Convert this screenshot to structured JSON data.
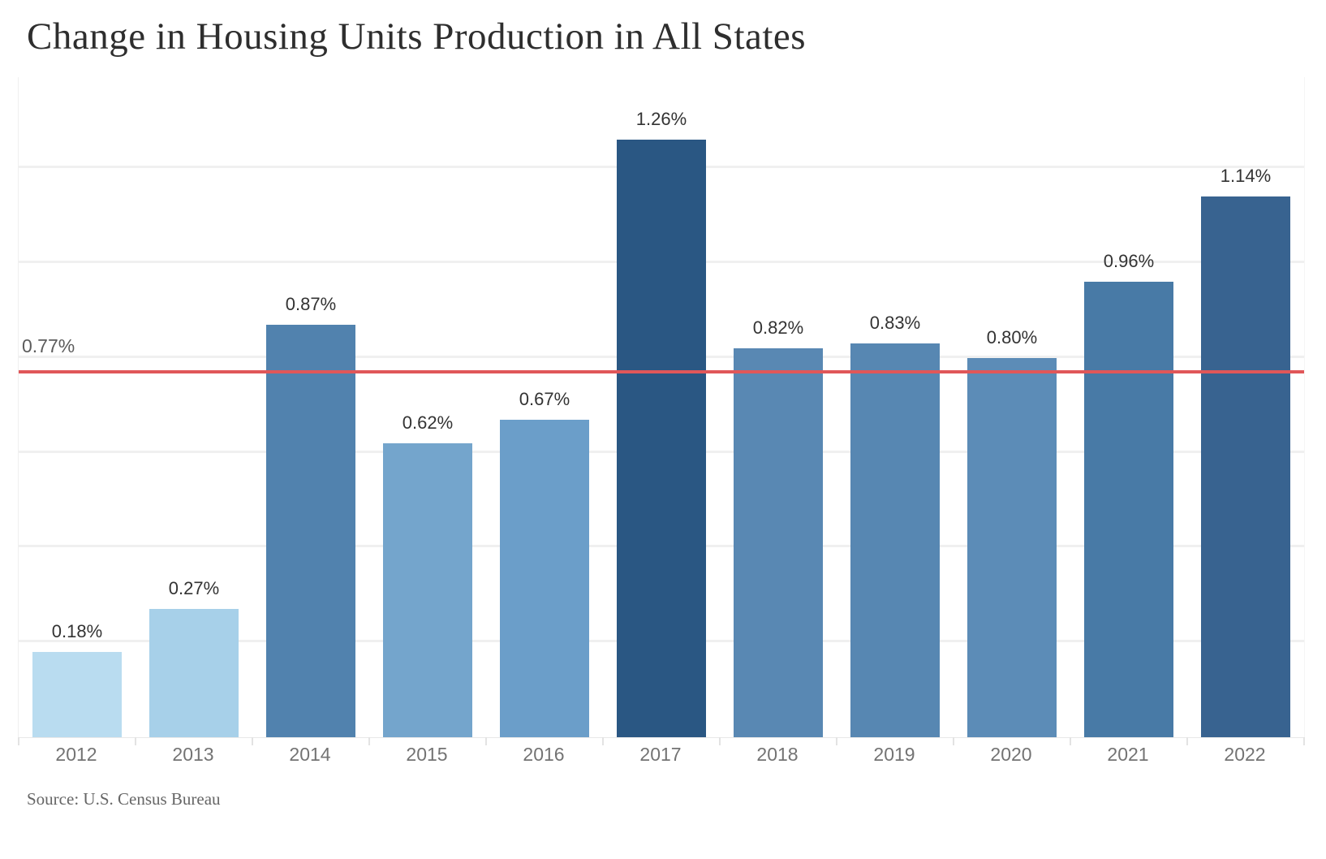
{
  "title": "Change in Housing Units Production in All States",
  "source_note": "Source: U.S. Census Bureau",
  "chart_data": {
    "type": "bar",
    "title": "Change in Housing Units Production in All States",
    "categories": [
      "2012",
      "2013",
      "2014",
      "2015",
      "2016",
      "2017",
      "2018",
      "2019",
      "2020",
      "2021",
      "2022"
    ],
    "values": [
      0.18,
      0.27,
      0.87,
      0.62,
      0.67,
      1.26,
      0.82,
      0.83,
      0.8,
      0.96,
      1.14
    ],
    "value_labels": [
      "0.18%",
      "0.27%",
      "0.87%",
      "0.62%",
      "0.67%",
      "1.26%",
      "0.82%",
      "0.83%",
      "0.80%",
      "0.96%",
      "1.14%"
    ],
    "bar_colors": [
      "#b9dcf0",
      "#a7d0e9",
      "#5182ae",
      "#74a5cc",
      "#6b9ec9",
      "#2a5783",
      "#5988b3",
      "#5787b2",
      "#5c8cb7",
      "#487aa6",
      "#386390"
    ],
    "xlabel": "",
    "ylabel": "",
    "ylim": [
      0,
      1.39
    ],
    "gridlines": [
      0.2,
      0.4,
      0.6,
      0.8,
      1.0,
      1.2
    ],
    "grid": "horizontal-light",
    "legend": "none",
    "reference_line": {
      "value": 0.77,
      "label": "0.77%",
      "color": "#e05759"
    },
    "colors": {
      "grid": "#f0f0f0",
      "value_label_text": "#333333",
      "axis_text": "#737373",
      "title_text": "#2e2e2e",
      "source_text": "#666666"
    }
  }
}
